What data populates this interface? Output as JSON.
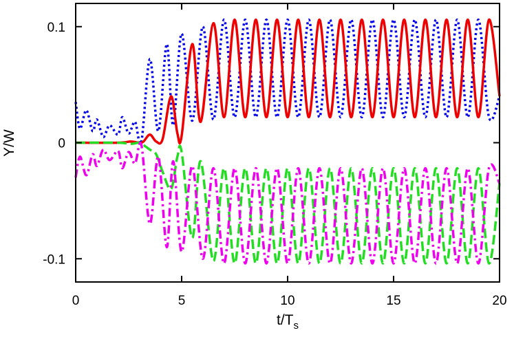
{
  "chart_data": {
    "type": "line",
    "xlabel": "t/T",
    "xlabel_sub": "s",
    "ylabel": "Y/W",
    "xlim": [
      0,
      20
    ],
    "ylim": [
      -0.12,
      0.12
    ],
    "x_ticks": [
      0,
      5,
      10,
      15,
      20
    ],
    "x_tick_labels": [
      "0",
      "5",
      "10",
      "15",
      "20"
    ],
    "y_ticks": [
      0.1,
      0,
      -0.1
    ],
    "y_tick_labels": [
      "0.1",
      "0",
      "-0.1"
    ],
    "grid": false,
    "legend": "none",
    "series": [
      {
        "color": "#0000ee",
        "style": "dotted",
        "x": [
          0,
          0.2,
          0.5,
          0.8,
          1.0,
          1.3,
          1.6,
          2.0,
          2.2,
          2.5,
          2.8,
          3.1,
          3.5,
          3.9,
          4.3,
          4.6,
          5.0,
          5.5,
          6.0,
          6.5,
          7.0,
          7.5,
          8.0,
          8.5,
          9.0,
          9.5,
          10.0,
          10.5,
          11.0,
          11.5,
          12.0,
          12.5,
          13.0,
          13.5,
          14.0,
          14.5,
          15.0,
          15.5,
          16.0,
          16.5,
          17.0,
          17.5,
          18.0,
          18.5,
          19.0,
          19.5,
          20.0
        ],
        "y": [
          0.035,
          0.012,
          0.028,
          0.01,
          0.02,
          0.005,
          0.015,
          0.007,
          0.022,
          0.008,
          0.018,
          0.001,
          0.072,
          0.01,
          0.085,
          0.015,
          0.094,
          0.019,
          0.1,
          0.02,
          0.106,
          0.022,
          0.106,
          0.022,
          0.106,
          0.022,
          0.106,
          0.022,
          0.106,
          0.022,
          0.106,
          0.022,
          0.106,
          0.022,
          0.106,
          0.022,
          0.106,
          0.022,
          0.106,
          0.022,
          0.106,
          0.022,
          0.106,
          0.022,
          0.106,
          0.022,
          0.04
        ]
      },
      {
        "color": "#ee0000",
        "style": "solid",
        "x": [
          0,
          2.0,
          2.6,
          3.0,
          3.2,
          3.5,
          3.8,
          4.1,
          4.5,
          4.8,
          5.0,
          5.5,
          5.9,
          6.5,
          7.0,
          7.5,
          8.0,
          8.5,
          9.0,
          9.5,
          10.0,
          10.5,
          11.0,
          11.5,
          12.0,
          12.5,
          13.0,
          13.5,
          14.0,
          14.5,
          15.0,
          15.5,
          16.0,
          16.5,
          17.0,
          17.5,
          18.0,
          18.5,
          19.0,
          19.5,
          20.0
        ],
        "y": [
          0.0,
          0.0,
          0.001,
          0.0,
          0.001,
          0.007,
          0.001,
          0.003,
          0.04,
          0.008,
          0.006,
          0.085,
          0.018,
          0.103,
          0.022,
          0.106,
          0.022,
          0.106,
          0.022,
          0.106,
          0.022,
          0.106,
          0.022,
          0.106,
          0.022,
          0.106,
          0.022,
          0.106,
          0.022,
          0.106,
          0.022,
          0.106,
          0.022,
          0.106,
          0.022,
          0.106,
          0.022,
          0.106,
          0.022,
          0.106,
          0.04
        ]
      },
      {
        "color": "#22dd22",
        "style": "dashed",
        "x": [
          0,
          2.0,
          2.6,
          3.0,
          3.2,
          3.5,
          3.8,
          4.1,
          4.5,
          4.8,
          5.0,
          5.5,
          5.9,
          6.5,
          7.0,
          7.5,
          8.0,
          8.5,
          9.0,
          9.5,
          10.0,
          10.5,
          11.0,
          11.5,
          12.0,
          12.5,
          13.0,
          13.5,
          14.0,
          14.5,
          15.0,
          15.5,
          16.0,
          16.5,
          17.0,
          17.5,
          18.0,
          18.5,
          19.0,
          19.5,
          20.0
        ],
        "y": [
          0.0,
          0.0,
          -0.001,
          0.0,
          -0.002,
          -0.006,
          -0.01,
          -0.025,
          -0.04,
          -0.012,
          -0.008,
          -0.082,
          -0.016,
          -0.102,
          -0.022,
          -0.104,
          -0.022,
          -0.104,
          -0.022,
          -0.104,
          -0.022,
          -0.104,
          -0.022,
          -0.104,
          -0.022,
          -0.104,
          -0.022,
          -0.104,
          -0.022,
          -0.104,
          -0.022,
          -0.104,
          -0.022,
          -0.104,
          -0.022,
          -0.104,
          -0.022,
          -0.104,
          -0.022,
          -0.104,
          -0.035
        ]
      },
      {
        "color": "#ee00ee",
        "style": "dash-dot",
        "x": [
          0,
          0.2,
          0.5,
          0.8,
          1.0,
          1.3,
          1.6,
          2.0,
          2.2,
          2.5,
          2.8,
          3.1,
          3.5,
          3.9,
          4.3,
          4.6,
          5.0,
          5.5,
          6.0,
          6.5,
          7.0,
          7.5,
          8.0,
          8.5,
          9.0,
          9.5,
          10.0,
          10.5,
          11.0,
          11.5,
          12.0,
          12.5,
          13.0,
          13.5,
          14.0,
          14.5,
          15.0,
          15.5,
          16.0,
          16.5,
          17.0,
          17.5,
          18.0,
          18.5,
          19.0,
          19.5,
          20.0
        ],
        "y": [
          -0.03,
          -0.012,
          -0.028,
          -0.01,
          -0.02,
          -0.006,
          -0.015,
          -0.007,
          -0.022,
          -0.008,
          -0.018,
          -0.002,
          -0.07,
          -0.012,
          -0.09,
          -0.016,
          -0.094,
          -0.02,
          -0.1,
          -0.022,
          -0.104,
          -0.022,
          -0.104,
          -0.022,
          -0.104,
          -0.022,
          -0.104,
          -0.022,
          -0.104,
          -0.022,
          -0.104,
          -0.022,
          -0.104,
          -0.022,
          -0.104,
          -0.022,
          -0.104,
          -0.022,
          -0.104,
          -0.022,
          -0.104,
          -0.022,
          -0.104,
          -0.022,
          -0.104,
          -0.022,
          -0.035
        ]
      }
    ]
  }
}
